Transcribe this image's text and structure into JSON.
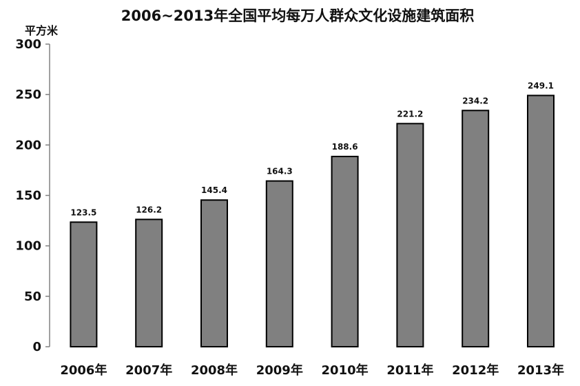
{
  "chart_data": {
    "type": "bar",
    "title": "2006~2013年全国平均每万人群众文化设施建筑面积",
    "ylabel": "平方米",
    "xlabel": "",
    "categories": [
      "2006年",
      "2007年",
      "2008年",
      "2009年",
      "2010年",
      "2011年",
      "2012年",
      "2013年"
    ],
    "values": [
      123.5,
      126.2,
      145.4,
      164.3,
      188.6,
      221.2,
      234.2,
      249.1
    ],
    "value_labels": [
      "123.5",
      "126.2",
      "145.4",
      "164.3",
      "188.6",
      "221.2",
      "234.2",
      "249.1"
    ],
    "ylim": [
      0,
      300
    ],
    "yticks": [
      "0",
      "50",
      "100",
      "150",
      "200",
      "250",
      "300"
    ],
    "grid": false,
    "bar_color": "#808080"
  }
}
